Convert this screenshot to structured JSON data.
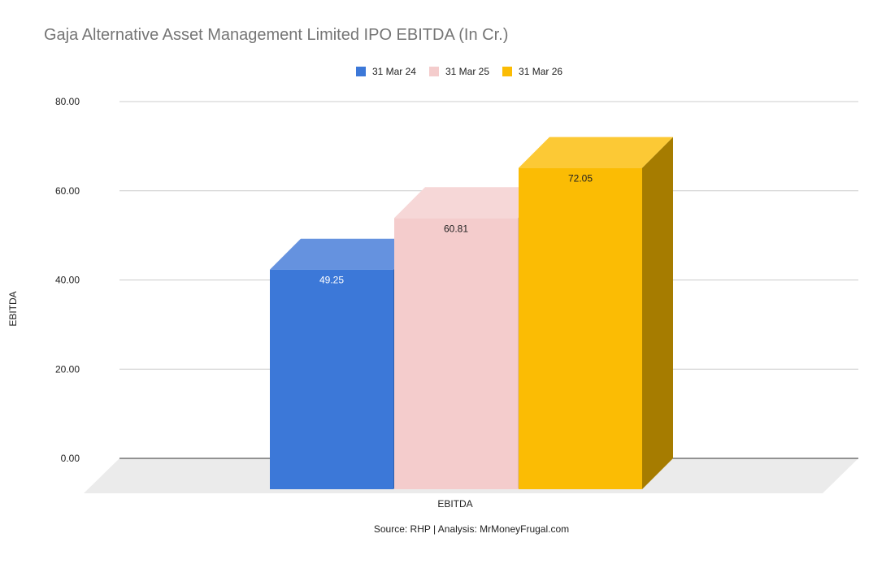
{
  "chart_data": {
    "type": "bar",
    "title": "Gaja Alternative Asset Management Limited IPO EBITDA (In Cr.)",
    "categories": [
      "EBITDA"
    ],
    "xlabel": "EBITDA",
    "ylabel": "EBITDA",
    "ylim": [
      0,
      80
    ],
    "yticks": [
      "80.00",
      "60.00",
      "40.00",
      "20.00",
      "0.00"
    ],
    "grid": true,
    "legend_position": "top",
    "style": "3d",
    "series": [
      {
        "name": "31 Mar 24",
        "values": [
          49.25
        ],
        "label": "49.25",
        "color": "#3c78d8",
        "top_color": "#6592df",
        "side_color": "#2f5fad",
        "label_color": "#ffffff"
      },
      {
        "name": "31 Mar 25",
        "values": [
          60.81
        ],
        "label": "60.81",
        "color": "#f4cccc",
        "top_color": "#f6d7d7",
        "side_color": "#d9b5b5",
        "label_color": "#222222"
      },
      {
        "name": "31 Mar 26",
        "values": [
          72.05
        ],
        "label": "72.05",
        "color": "#fbbc04",
        "top_color": "#fcc935",
        "side_color": "#a67c00",
        "label_color": "#222222"
      }
    ],
    "source": "Source: RHP | Analysis: MrMoneyFrugal.com"
  }
}
